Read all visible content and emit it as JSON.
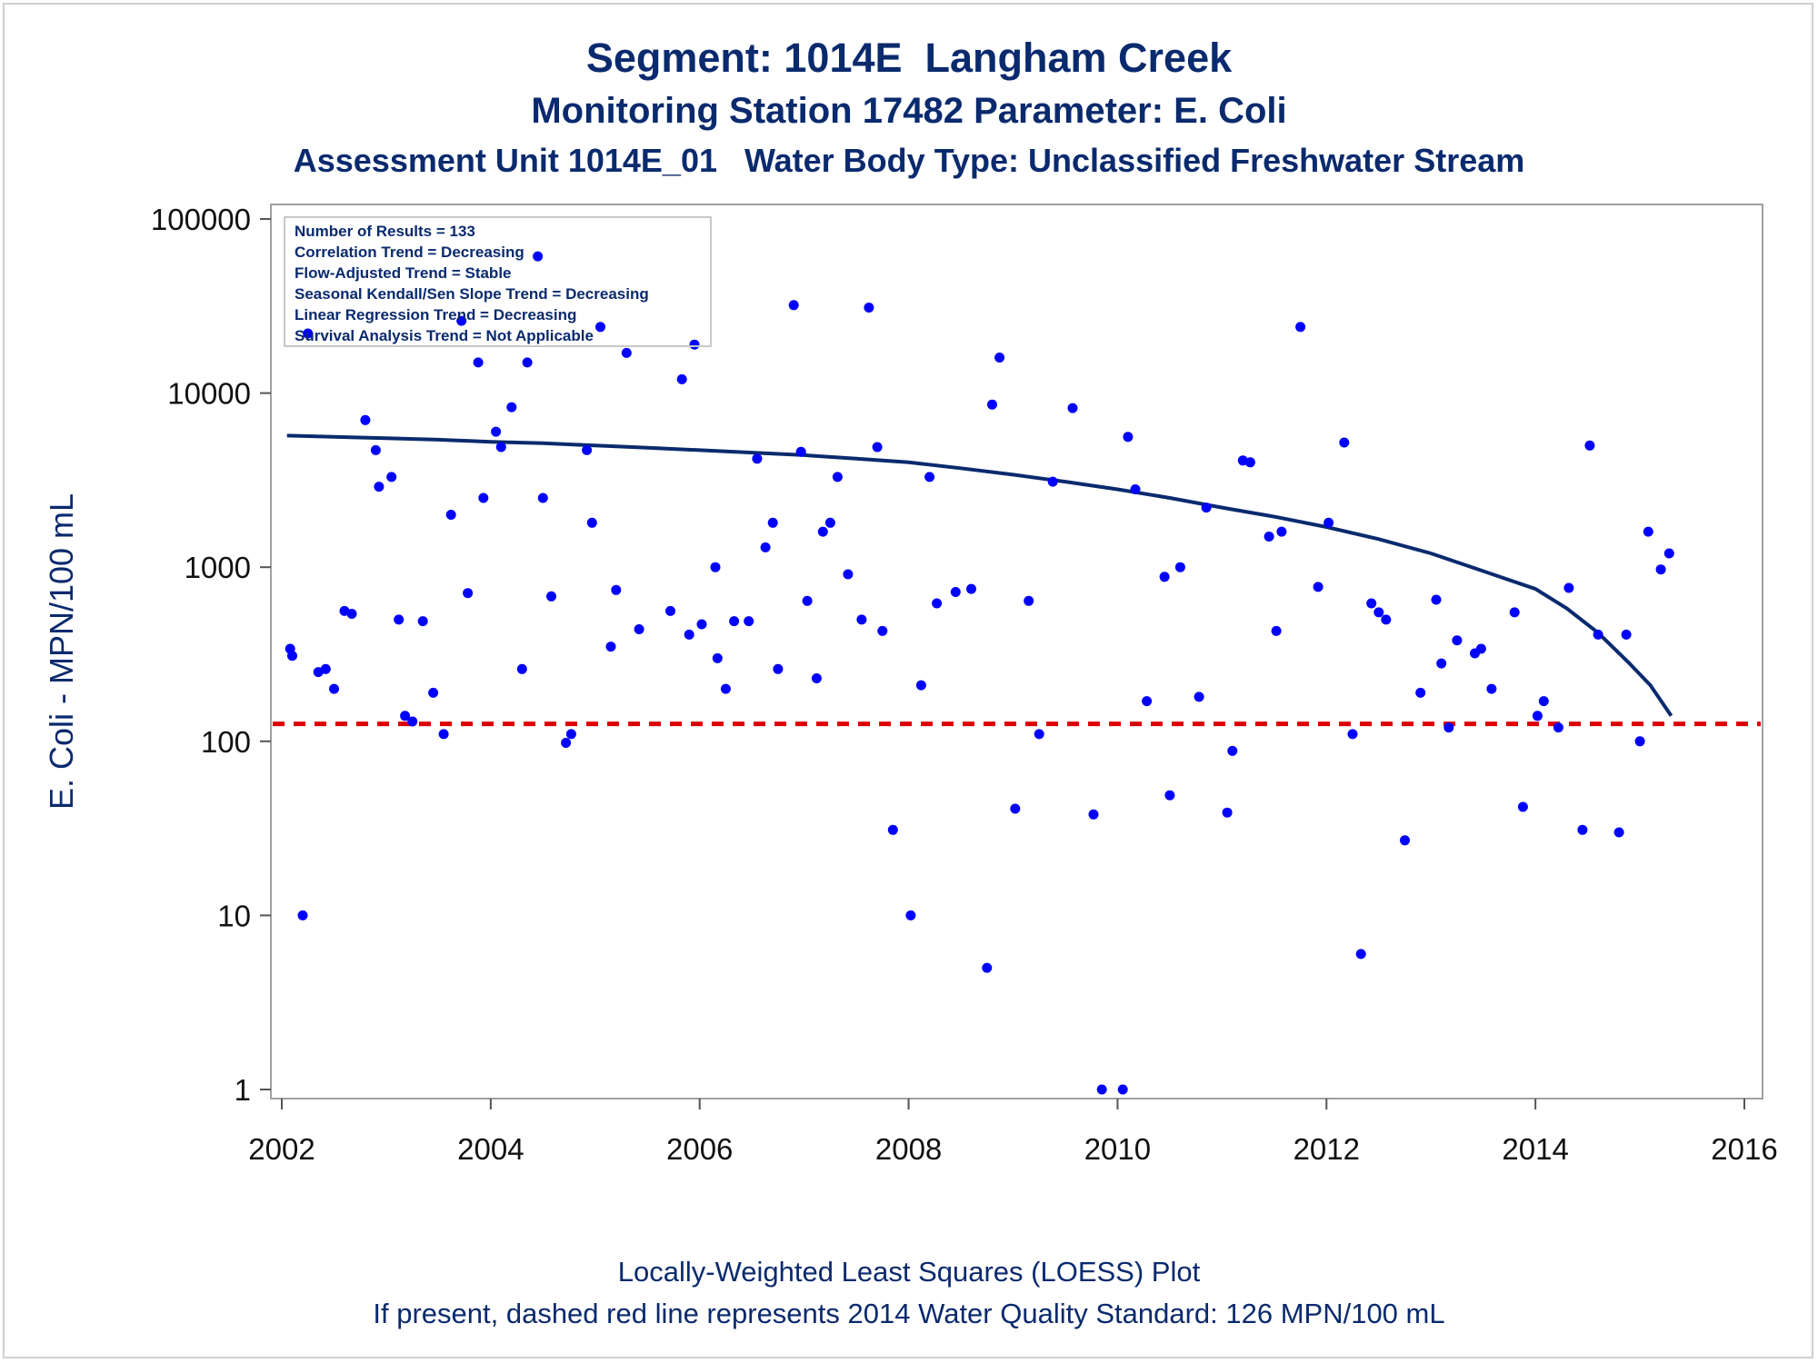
{
  "titles": {
    "line1": "Segment: 1014E  Langham Creek",
    "line2": "Monitoring Station 17482 Parameter: E. Coli",
    "line3": "Assessment Unit 1014E_01   Water Body Type: Unclassified Freshwater Stream"
  },
  "footer": {
    "line1": "Locally-Weighted Least Squares (LOESS) Plot",
    "line2": "If present, dashed red line represents 2014 Water Quality Standard: 126 MPN/100 mL"
  },
  "inset": {
    "lines": [
      "Number of Results = 133",
      "Correlation Trend = Decreasing",
      "Flow-Adjusted Trend = Stable",
      "Seasonal Kendall/Sen Slope Trend = Decreasing",
      "Linear Regression Trend = Decreasing",
      "Survival Analysis Trend = Not Applicable"
    ]
  },
  "colors": {
    "title": "#0a2a6e",
    "points": "#0000ff",
    "loess": "#0a2a6e",
    "standard_line": "#dd0000",
    "frame": "#a0a0a0"
  },
  "chart_data": {
    "type": "scatter",
    "title": "Segment: 1014E  Langham Creek",
    "xlabel": "",
    "ylabel": "E. Coli - MPN/100 mL",
    "y_scale": "log",
    "xlim": [
      2002,
      2016
    ],
    "ylim": [
      1,
      100000
    ],
    "x_ticks": [
      2002,
      2004,
      2006,
      2008,
      2010,
      2012,
      2014,
      2016
    ],
    "y_ticks": [
      1,
      10,
      100,
      1000,
      10000,
      100000
    ],
    "y_tick_labels": [
      "1",
      "10",
      "100",
      "1000",
      "10000",
      "100000"
    ],
    "grid": false,
    "legend": "inset top-left",
    "standard": {
      "value": 126,
      "style": "dashed red"
    },
    "series": [
      {
        "type": "scatter",
        "x": [
          2002.08,
          2002.1,
          2002.2,
          2002.25,
          2002.35,
          2002.42,
          2002.5,
          2002.6,
          2002.67,
          2002.8,
          2002.9,
          2002.93,
          2003.05,
          2003.12,
          2003.18,
          2003.25,
          2003.35,
          2003.45,
          2003.55,
          2003.62,
          2003.72,
          2003.78,
          2003.88,
          2003.93,
          2004.05,
          2004.1,
          2004.2,
          2004.3,
          2004.35,
          2004.45,
          2004.5,
          2004.58,
          2004.72,
          2004.77,
          2004.92,
          2004.97,
          2005.05,
          2005.15,
          2005.2,
          2005.3,
          2005.42,
          2005.72,
          2005.83,
          2005.9,
          2005.95,
          2006.02,
          2006.15,
          2006.17,
          2006.25,
          2006.33,
          2006.47,
          2006.55,
          2006.63,
          2006.7,
          2006.75,
          2006.9,
          2006.97,
          2007.03,
          2007.12,
          2007.18,
          2007.25,
          2007.32,
          2007.42,
          2007.55,
          2007.62,
          2007.7,
          2007.75,
          2007.85,
          2008.02,
          2008.12,
          2008.2,
          2008.27,
          2008.45,
          2008.6,
          2008.75,
          2008.8,
          2008.87,
          2009.02,
          2009.15,
          2009.25,
          2009.38,
          2009.57,
          2009.77,
          2009.85,
          2010.05,
          2010.1,
          2010.17,
          2010.28,
          2010.45,
          2010.5,
          2010.6,
          2010.78,
          2010.85,
          2011.05,
          2011.1,
          2011.2,
          2011.27,
          2011.45,
          2011.52,
          2011.57,
          2011.75,
          2011.92,
          2012.02,
          2012.17,
          2012.25,
          2012.33,
          2012.43,
          2012.5,
          2012.57,
          2012.75,
          2012.9,
          2013.05,
          2013.1,
          2013.17,
          2013.25,
          2013.42,
          2013.48,
          2013.58,
          2013.8,
          2013.88,
          2014.02,
          2014.08,
          2014.22,
          2014.32,
          2014.45,
          2014.52,
          2014.6,
          2014.8,
          2014.87,
          2015.0,
          2015.08,
          2015.2,
          2015.28
        ],
        "y": [
          340,
          310,
          10,
          22000,
          250,
          260,
          200,
          560,
          540,
          7000,
          4700,
          2900,
          3300,
          500,
          140,
          130,
          490,
          190,
          110,
          2000,
          26000,
          710,
          15000,
          2500,
          6000,
          4900,
          8300,
          260,
          15000,
          61000,
          2500,
          680,
          98,
          110,
          4700,
          1800,
          24000,
          350,
          740,
          17000,
          440,
          560,
          12000,
          410,
          19000,
          470,
          1000,
          300,
          200,
          490,
          490,
          4200,
          1300,
          1800,
          260,
          32000,
          4600,
          640,
          230,
          1600,
          1800,
          3300,
          910,
          500,
          31000,
          4900,
          430,
          31,
          10,
          210,
          3300,
          620,
          720,
          750,
          5,
          8600,
          16000,
          41,
          640,
          110,
          3100,
          8200,
          38,
          1,
          1,
          5600,
          2800,
          170,
          880,
          49,
          1000,
          180,
          2200,
          39,
          88,
          4100,
          4000,
          1500,
          430,
          1600,
          24000,
          770,
          1800,
          5200,
          110,
          6,
          620,
          550,
          500,
          27,
          190,
          650,
          280,
          120,
          380,
          320,
          340,
          200,
          550,
          42,
          140,
          170,
          120,
          760,
          31,
          5000,
          410,
          30,
          410,
          100,
          1600,
          970,
          1200
        ]
      },
      {
        "name": "LOESS",
        "type": "line",
        "x": [
          2002.05,
          2002.5,
          2003,
          2003.5,
          2004,
          2004.5,
          2005,
          2005.5,
          2006,
          2006.5,
          2007,
          2007.5,
          2008,
          2008.5,
          2009,
          2009.5,
          2010,
          2010.5,
          2011,
          2011.5,
          2012,
          2012.5,
          2013,
          2013.5,
          2014,
          2014.3,
          2014.6,
          2014.9,
          2015.1,
          2015.3
        ],
        "y": [
          5700,
          5600,
          5500,
          5400,
          5250,
          5150,
          5000,
          4850,
          4700,
          4550,
          4400,
          4200,
          4000,
          3700,
          3400,
          3100,
          2800,
          2500,
          2200,
          1950,
          1700,
          1450,
          1200,
          950,
          750,
          580,
          420,
          280,
          210,
          140
        ]
      }
    ]
  }
}
